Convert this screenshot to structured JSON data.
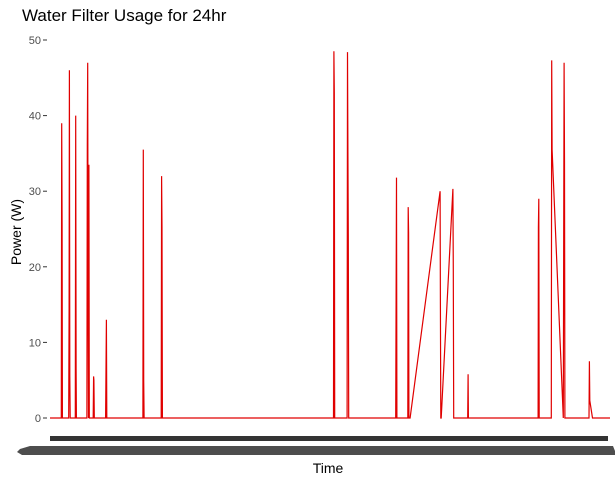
{
  "chart_data": {
    "type": "line",
    "title": "Water Filter Usage for 24hr",
    "xlabel": "Time",
    "ylabel": "Power (W)",
    "ylim": [
      0,
      50
    ],
    "y_ticks": [
      0,
      10,
      20,
      30,
      40,
      50
    ],
    "grid": false,
    "line_color": "#e00000",
    "x_tick_labels_note": "x-axis tick labels are dense and overlapping, rendered as an illegible dark band",
    "x_range": [
      0,
      1440
    ],
    "series": [
      {
        "x": [
          0,
          29,
          30,
          31,
          32,
          33,
          48,
          49,
          50,
          51,
          52,
          53,
          65,
          66,
          67,
          68,
          69,
          95,
          96,
          97,
          98,
          99,
          100,
          101,
          111,
          112,
          113,
          114,
          115,
          143,
          144,
          145,
          146,
          147,
          239,
          240,
          241,
          242,
          286,
          287,
          288,
          289,
          290,
          729,
          730,
          731,
          732,
          733,
          764,
          765,
          766,
          767,
          768,
          889,
          890,
          891,
          892,
          893,
          894,
          895,
          920,
          921,
          922,
          923,
          924,
          925,
          926,
          1003,
          1004,
          1005,
          1006,
          1036,
          1037,
          1038,
          1039,
          1040,
          1074,
          1075,
          1076,
          1077,
          1255,
          1256,
          1257,
          1258,
          1259,
          1289,
          1290,
          1291,
          1320,
          1321,
          1322,
          1323,
          1324,
          1385,
          1386,
          1387,
          1388,
          1395,
          1396,
          1397,
          1398,
          1399,
          1417,
          1418,
          1419,
          1420,
          1440
        ],
        "y": [
          0,
          0,
          39,
          25.5,
          0,
          0,
          0,
          14.5,
          46,
          5.5,
          0,
          0,
          0,
          40,
          6.5,
          0,
          0,
          0,
          36,
          47,
          16.5,
          0,
          33.5,
          0,
          0,
          5.5,
          5,
          0,
          0,
          0,
          6.5,
          13,
          0,
          0,
          0,
          35.5,
          5,
          0,
          0,
          32,
          25.3,
          0,
          0,
          0,
          48.5,
          43,
          0,
          0,
          0,
          48.4,
          35.5,
          24,
          0,
          0,
          16,
          31.8,
          0,
          0,
          0,
          0,
          0,
          27.9,
          24.5,
          0,
          0,
          0,
          0,
          30,
          15,
          0,
          0,
          30.3,
          19.5,
          0,
          0,
          0,
          0,
          5.8,
          0,
          0,
          0,
          25.2,
          29,
          0,
          0,
          0,
          47.3,
          35.5,
          0,
          23.8,
          47,
          34,
          0,
          0,
          0,
          7.5,
          2.3,
          0,
          0,
          0,
          0,
          0,
          0,
          0,
          0,
          0,
          0
        ]
      }
    ]
  }
}
